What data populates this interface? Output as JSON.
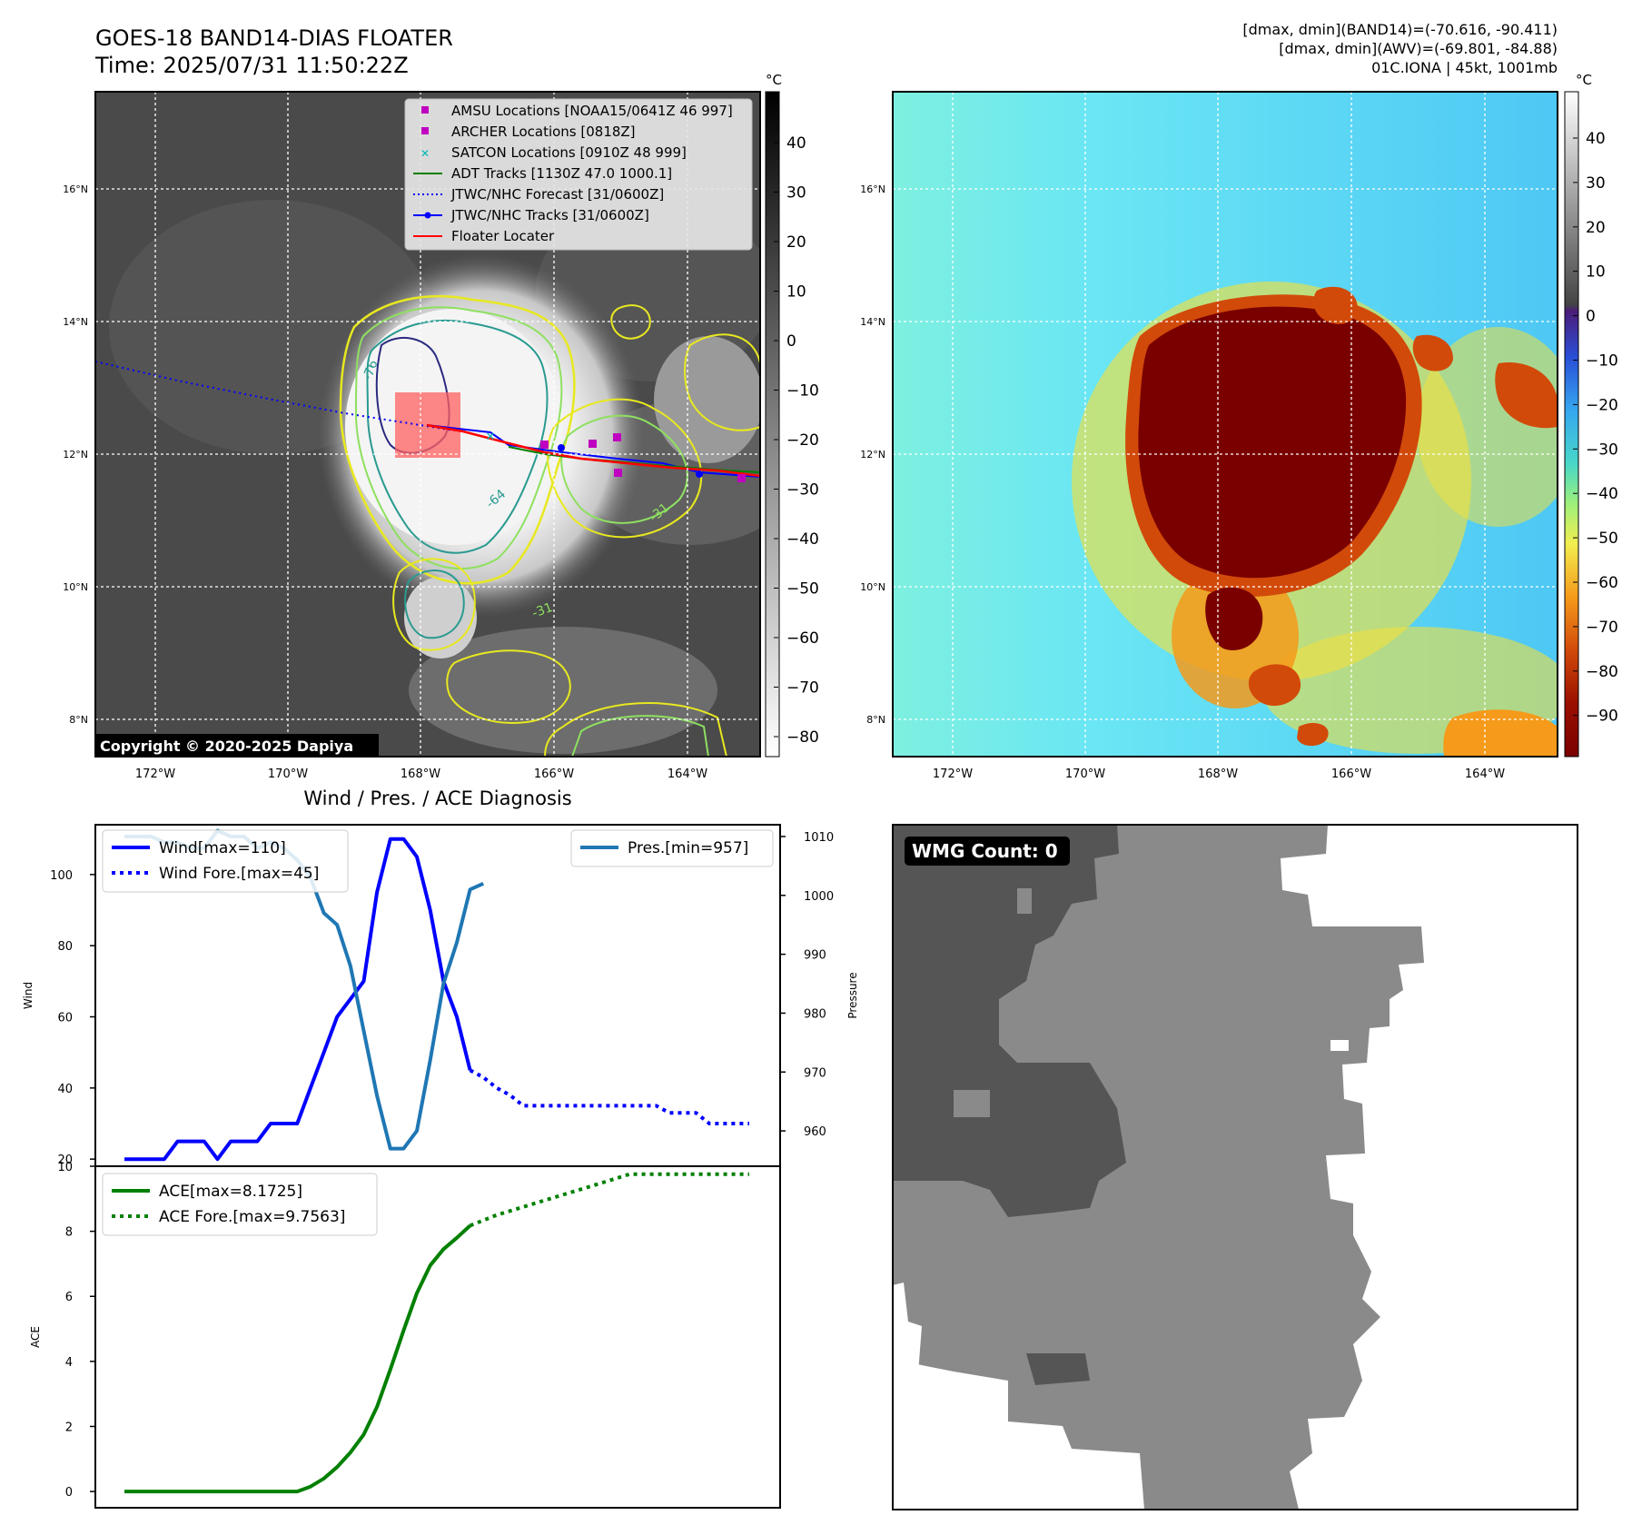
{
  "header": {
    "title_line1": "GOES-18 BAND14-DIAS FLOATER",
    "title_line2": "Time: 2025/07/31 11:50:22Z",
    "info_line1": "[dmax, dmin](BAND14)=(-70.616, -90.411)",
    "info_line2": "[dmax, dmin](AWV)=(-69.801, -84.88)",
    "info_line3": "01C.IONA | 45kt, 1001mb"
  },
  "copyright": "Copyright © 2020-2025 Dapiya",
  "colorbar_unit": "°C",
  "map": {
    "lon_ticks": [
      "172°W",
      "170°W",
      "168°W",
      "166°W",
      "164°W"
    ],
    "lat_ticks": [
      "16°N",
      "14°N",
      "12°N",
      "10°N",
      "8°N"
    ]
  },
  "colorbar_left": {
    "ticks": [
      "40",
      "30",
      "20",
      "10",
      "0",
      "−10",
      "−20",
      "−30",
      "−40",
      "−50",
      "−60",
      "−70",
      "−80"
    ]
  },
  "colorbar_right": {
    "ticks": [
      "40",
      "30",
      "20",
      "10",
      "0",
      "−10",
      "−20",
      "−30",
      "−40",
      "−50",
      "−60",
      "−70",
      "−80",
      "−90"
    ]
  },
  "contour_labels": [
    "-76",
    "-64",
    "-31",
    "-31"
  ],
  "legend": [
    {
      "label": "AMSU Locations [NOAA15/0641Z 46 997]",
      "marker": "square",
      "color": "#c000c0"
    },
    {
      "label": "ARCHER Locations [0818Z]",
      "marker": "square",
      "color": "#c000c0"
    },
    {
      "label": "SATCON Locations [0910Z 48 999]",
      "marker": "x",
      "color": "#00b8b8"
    },
    {
      "label": "ADT Tracks [1130Z 47.0 1000.1]",
      "marker": "line",
      "color": "#008000"
    },
    {
      "label": "JTWC/NHC Forecast [31/0600Z]",
      "marker": "dotted",
      "color": "#0000ff"
    },
    {
      "label": "JTWC/NHC Tracks [31/0600Z]",
      "marker": "line-dot",
      "color": "#0000ff"
    },
    {
      "label": "Floater Locater",
      "marker": "line",
      "color": "#ff0000"
    }
  ],
  "diagnosis_title": "Wind / Pres. / ACE Diagnosis",
  "wmg_label": "WMG Count: 0",
  "chart_data": [
    {
      "type": "line",
      "title": "Wind / Pres. / ACE Diagnosis",
      "ylabel": "Wind",
      "ylabel_right": "Pressure",
      "ylim": [
        18,
        114
      ],
      "ylim_right": [
        954,
        1012
      ],
      "yticks": [
        20,
        40,
        60,
        80,
        100
      ],
      "yticks_right": [
        960,
        970,
        980,
        990,
        1000,
        1010
      ],
      "x": [
        0,
        1,
        2,
        3,
        4,
        5,
        6,
        7,
        8,
        9,
        10,
        11,
        12,
        13,
        14,
        15,
        16,
        17,
        18,
        19,
        20,
        21,
        22,
        23,
        24,
        25,
        26,
        27,
        28,
        29,
        30,
        31,
        32,
        33,
        34,
        35,
        36,
        37,
        38,
        39,
        40,
        41,
        42,
        43,
        44,
        45,
        46,
        47
      ],
      "series": [
        {
          "name": "Wind[max=110]",
          "axis": "left",
          "color": "#0000ff",
          "style": "solid",
          "x": [
            0,
            1,
            2,
            3,
            4,
            5,
            6,
            7,
            8,
            9,
            10,
            11,
            12,
            13,
            14,
            15,
            16,
            17,
            18,
            19,
            20,
            21,
            22,
            23,
            24,
            25,
            26
          ],
          "values": [
            20,
            20,
            20,
            20,
            25,
            25,
            25,
            20,
            25,
            25,
            25,
            30,
            30,
            30,
            40,
            50,
            60,
            65,
            70,
            95,
            110,
            110,
            105,
            90,
            70,
            60,
            45
          ]
        },
        {
          "name": "Wind Fore.[max=45]",
          "axis": "left",
          "color": "#0000ff",
          "style": "dotted",
          "x": [
            26,
            27,
            28,
            29,
            30,
            31,
            32,
            33,
            34,
            35,
            36,
            37,
            38,
            39,
            40,
            41,
            42,
            43,
            44,
            45,
            46,
            47
          ],
          "values": [
            45,
            43,
            40,
            38,
            35,
            35,
            35,
            35,
            35,
            35,
            35,
            35,
            35,
            35,
            35,
            33,
            33,
            33,
            30,
            30,
            30,
            30
          ]
        },
        {
          "name": "Pres.[min=957]",
          "axis": "right",
          "color": "#1f77b4",
          "style": "solid",
          "x": [
            0,
            1,
            2,
            3,
            4,
            5,
            6,
            7,
            8,
            9,
            10,
            11,
            12,
            13,
            14,
            15,
            16,
            17,
            18,
            19,
            20,
            21,
            22,
            23,
            24,
            25,
            26,
            27
          ],
          "values": [
            1010,
            1010,
            1010,
            1009,
            1009,
            1008,
            1008,
            1011,
            1010,
            1010,
            1008,
            1009,
            1008,
            1006,
            1003,
            997,
            995,
            988,
            977,
            966,
            957,
            957,
            960,
            972,
            985,
            992,
            1001,
            1002
          ]
        }
      ]
    },
    {
      "type": "line",
      "ylabel": "ACE",
      "ylim": [
        -0.5,
        10
      ],
      "yticks": [
        0,
        2,
        4,
        6,
        8,
        10
      ],
      "series": [
        {
          "name": "ACE[max=8.1725]",
          "color": "#008000",
          "style": "solid",
          "x": [
            0,
            1,
            2,
            3,
            4,
            5,
            6,
            7,
            8,
            9,
            10,
            11,
            12,
            13,
            14,
            15,
            16,
            17,
            18,
            19,
            20,
            21,
            22,
            23,
            24,
            25,
            26
          ],
          "values": [
            0,
            0,
            0,
            0,
            0,
            0,
            0,
            0,
            0,
            0,
            0,
            0,
            0,
            0,
            0.15,
            0.4,
            0.75,
            1.2,
            1.75,
            2.6,
            3.75,
            4.95,
            6.1,
            6.95,
            7.45,
            7.8,
            8.1725
          ]
        },
        {
          "name": "ACE Fore.[max=9.7563]",
          "color": "#008000",
          "style": "dotted",
          "x": [
            26,
            28,
            30,
            32,
            34,
            36,
            38,
            40,
            42,
            44,
            47
          ],
          "values": [
            8.1725,
            8.5,
            8.75,
            9.0,
            9.25,
            9.5,
            9.7563,
            9.7563,
            9.7563,
            9.7563,
            9.7563
          ]
        }
      ]
    }
  ]
}
